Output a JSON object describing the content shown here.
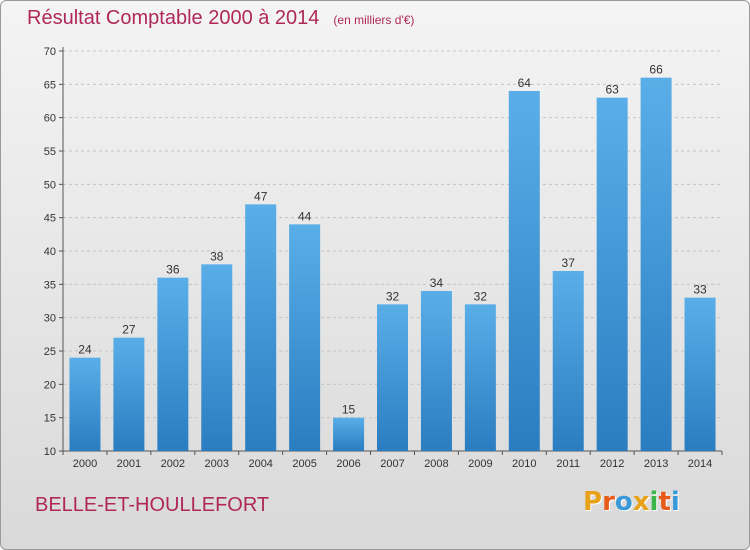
{
  "header": {
    "title": "Résultat Comptable 2000 à 2014",
    "unit": "(en milliers d'€)"
  },
  "footer": {
    "commune": "BELLE-ET-HOULLEFORT",
    "logo_letters": [
      "P",
      "r",
      "o",
      "x",
      "i",
      "t",
      "i"
    ],
    "logo_colors": [
      "#e8a21a",
      "#e85a1a",
      "#3a9ad9",
      "#e8a21a",
      "#3ab54a",
      "#e85a1a",
      "#3a9ad9"
    ]
  },
  "colors": {
    "bar_light": "#5aaee8",
    "bar_dark": "#2a7dc0",
    "title": "#b0285a",
    "grid": "#c4c4c4"
  },
  "chart_data": {
    "type": "bar",
    "title": "Résultat Comptable 2000 à 2014",
    "subtitle": "(en milliers d'€)",
    "xlabel": "",
    "ylabel": "",
    "categories": [
      "2000",
      "2001",
      "2002",
      "2003",
      "2004",
      "2005",
      "2006",
      "2007",
      "2008",
      "2009",
      "2010",
      "2011",
      "2012",
      "2013",
      "2014"
    ],
    "values": [
      24,
      27,
      36,
      38,
      47,
      44,
      15,
      32,
      34,
      32,
      64,
      37,
      63,
      66,
      33
    ],
    "ylim": [
      10,
      70
    ],
    "yticks": [
      10,
      15,
      20,
      25,
      30,
      35,
      40,
      45,
      50,
      55,
      60,
      65,
      70
    ],
    "grid": true,
    "data_labels": true
  }
}
